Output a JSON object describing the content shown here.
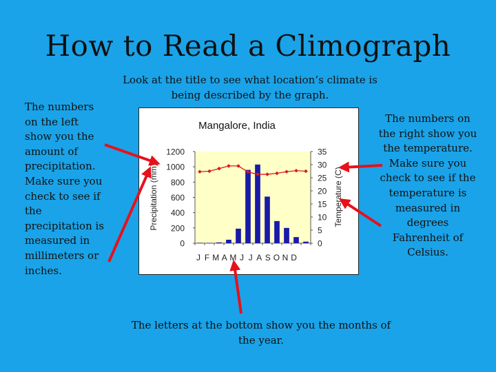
{
  "slide": {
    "title": "How to Read a Climograph",
    "left_note": "The numbers on the left show you the amount of precipitation. Make sure you check to see if the precipitation is measured in millimeters or inches.",
    "top_note": "Look at the title to see what location’s climate is being described by the graph.",
    "right_note": "The numbers on the right show you the temperature. Make sure you check to see if the temperature is measured in degrees Fahrenheit of Celsius.",
    "bottom_note": "The letters at the bottom show you the months of the year.",
    "colors": {
      "background": "#1aa3e8",
      "arrow": "#e8101a"
    }
  },
  "chart_data": {
    "type": "bar+line",
    "title": "Mangalore, India",
    "categories": [
      "J",
      "F",
      "M",
      "A",
      "M",
      "J",
      "J",
      "A",
      "S",
      "O",
      "N",
      "D"
    ],
    "precipitation": {
      "ylabel": "Precipitation (mm)",
      "ylim": [
        0,
        1200
      ],
      "ticks": [
        "0",
        "200",
        "400",
        "600",
        "800",
        "1000",
        "1200"
      ],
      "values": [
        5,
        3,
        10,
        45,
        190,
        960,
        1030,
        610,
        290,
        200,
        80,
        20
      ],
      "color": "#1a1aa8"
    },
    "temperature": {
      "ylabel": "Temperature (C)",
      "ylim": [
        0,
        35
      ],
      "ticks": [
        "0",
        "5",
        "10",
        "15",
        "20",
        "25",
        "30",
        "35"
      ],
      "values": [
        27.3,
        27.5,
        28.5,
        29.5,
        29.5,
        27.2,
        26.3,
        26.3,
        26.7,
        27.3,
        27.7,
        27.5
      ],
      "color": "#d81a1a"
    },
    "plot_background": "#ffffc8",
    "grid": false
  }
}
